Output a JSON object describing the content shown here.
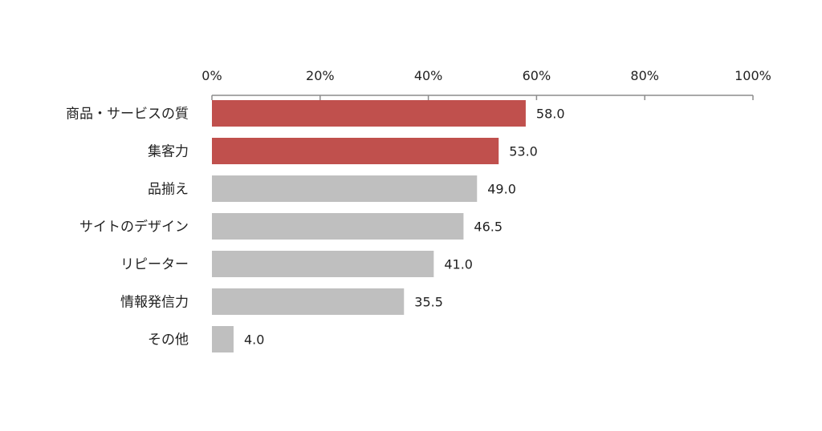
{
  "colors": {
    "highlight": "#c0504d",
    "default": "#bfbfbf",
    "axis": "#8c8c8c",
    "text": "#222222"
  },
  "chart_data": {
    "type": "bar",
    "orientation": "horizontal",
    "title": "",
    "xlabel": "",
    "ylabel": "",
    "xlim": [
      0,
      100
    ],
    "ticks": [
      0,
      20,
      40,
      60,
      80,
      100
    ],
    "tick_labels": [
      "0%",
      "20%",
      "40%",
      "60%",
      "80%",
      "100%"
    ],
    "axis_position": "top",
    "grid": false,
    "categories": [
      "商品・サービスの質",
      "集客力",
      "品揃え",
      "サイトのデザイン",
      "リピーター",
      "情報発信力",
      "その他"
    ],
    "values": [
      58.0,
      53.0,
      49.0,
      46.5,
      41.0,
      35.5,
      4.0
    ],
    "value_labels": [
      "58.0",
      "53.0",
      "49.0",
      "46.5",
      "41.0",
      "35.5",
      "4.0"
    ],
    "highlighted": [
      true,
      true,
      false,
      false,
      false,
      false,
      false
    ]
  }
}
